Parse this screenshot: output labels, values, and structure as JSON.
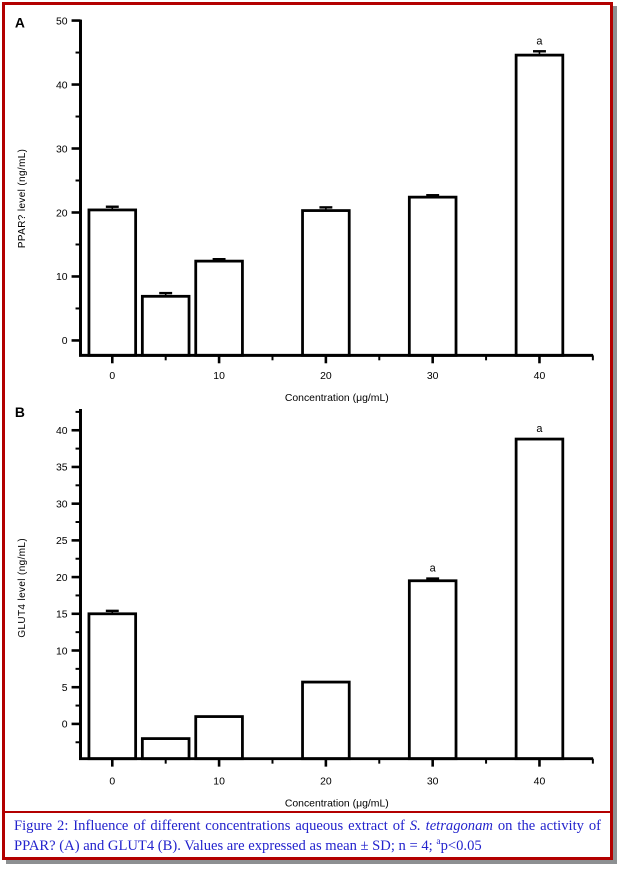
{
  "figure": {
    "border_color": "#b30000",
    "caption": {
      "text_color": "#2323cd",
      "prefix": "Figure 2: Influence of different concentrations aqueous extract of ",
      "species": "S. tetragonam",
      "middle": "  on the activity of PPAR? (A) and GLUT4 (B). Values are expressed as mean ± SD; n = 4; ",
      "sig_marker": "a",
      "suffix": "p<0.05"
    }
  },
  "chart_data": [
    {
      "type": "bar",
      "panel": "A",
      "title": "",
      "xlabel": "Concentration (μg/mL)",
      "ylabel": "PPAR? level (ng/mL)",
      "categories": [
        0,
        5,
        10,
        20,
        30,
        40
      ],
      "values": [
        20.4,
        6.9,
        12.4,
        20.3,
        22.4,
        44.6
      ],
      "errors": [
        0.5,
        0.5,
        0.3,
        0.5,
        0.3,
        0.6
      ],
      "annotations": [
        null,
        null,
        null,
        null,
        null,
        "a"
      ],
      "x_tick_values": [
        0,
        10,
        20,
        30,
        40
      ],
      "x_tick_labels": [
        "0",
        "10",
        "20",
        "30",
        "40"
      ],
      "x_minor_step": 5,
      "y_tick_values": [
        0,
        10,
        20,
        30,
        40,
        50
      ],
      "y_tick_labels": [
        "0",
        "10",
        "20",
        "30",
        "40",
        "50"
      ],
      "y_minor_step": 5,
      "ylim": [
        -2.3,
        50.3
      ],
      "grid": false,
      "legend": null,
      "bar_fill": "#ffffff",
      "bar_stroke": "#000000"
    },
    {
      "type": "bar",
      "panel": "B",
      "title": "",
      "xlabel": "Concentration (μg/mL)",
      "ylabel": "GLUT4 level (ng/mL)",
      "categories": [
        0,
        5,
        10,
        20,
        30,
        40
      ],
      "values": [
        15.0,
        -2.0,
        1.0,
        5.7,
        19.5,
        38.8
      ],
      "errors": [
        0.4,
        0,
        0,
        0,
        0.3,
        0
      ],
      "annotations": [
        null,
        null,
        null,
        null,
        "a",
        "a"
      ],
      "x_tick_values": [
        0,
        10,
        20,
        30,
        40
      ],
      "x_tick_labels": [
        "0",
        "10",
        "20",
        "30",
        "40"
      ],
      "x_minor_step": 5,
      "y_tick_values": [
        0,
        5,
        10,
        15,
        20,
        25,
        30,
        35,
        40
      ],
      "y_tick_labels": [
        "0",
        "5",
        "10",
        "15",
        "20",
        "25",
        "30",
        "35",
        "40"
      ],
      "y_minor_step": 2.5,
      "ylim": [
        -4.7,
        42.6
      ],
      "grid": false,
      "legend": null,
      "bar_fill": "#ffffff",
      "bar_stroke": "#000000"
    }
  ]
}
